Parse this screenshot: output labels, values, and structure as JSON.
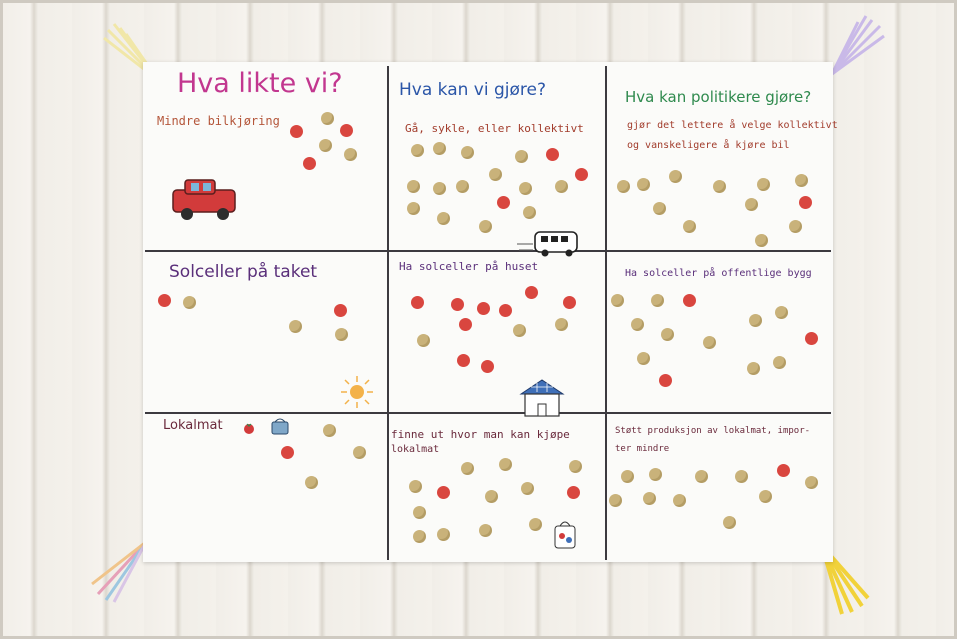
{
  "poster": {
    "q1_title": "Hva likte vi?",
    "q1_note": "Mindre bilkjøring",
    "q2_title": "Hva kan vi gjøre?",
    "q2_note": "Gå, sykle, eller kollektivt",
    "q3_title": "Hva kan politikere gjøre?",
    "q3_note_line1": "gjør det lettere å velge kollektivt",
    "q3_note_line2": "og vanskeligere å kjøre bil",
    "r2c1": "Solceller på taket",
    "r2c2": "Ha solceller på huset",
    "r2c3": "Ha solceller på offentlige bygg",
    "r3c1": "Lokalmat",
    "r3c2_line1": "finne ut hvor man kan kjøpe",
    "r3c2_line2": "lokalmat",
    "r3c3_line1": "Støtt produksjon av lokalmat, impor-",
    "r3c3_line2": "ter mindre"
  },
  "colors": {
    "title1": "#c2378f",
    "title2": "#2b56a8",
    "title3": "#2f8a4e",
    "handwriting": "#5a2f7a",
    "dot_red": "#d9463f",
    "dot_gold": "#c9b27a"
  }
}
